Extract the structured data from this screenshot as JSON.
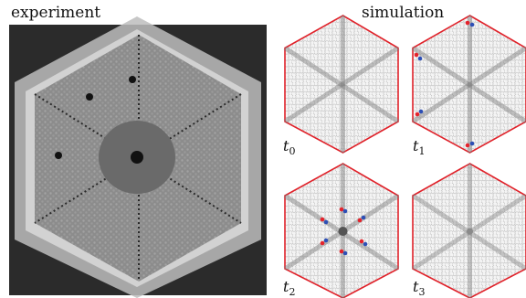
{
  "figure": {
    "experiment_label": "experiment",
    "simulation_label": "simulation",
    "panels": [
      {
        "time_symbol": "t",
        "time_index": "0"
      },
      {
        "time_symbol": "t",
        "time_index": "1"
      },
      {
        "time_symbol": "t",
        "time_index": "2"
      },
      {
        "time_symbol": "t",
        "time_index": "3"
      }
    ]
  },
  "colors": {
    "hex_outline": "#e0222a",
    "photo_background": "#2b2b2b",
    "packing_gray": "#8a8a8a",
    "defect_red": "#e4232c",
    "defect_blue": "#2d4fb5"
  }
}
